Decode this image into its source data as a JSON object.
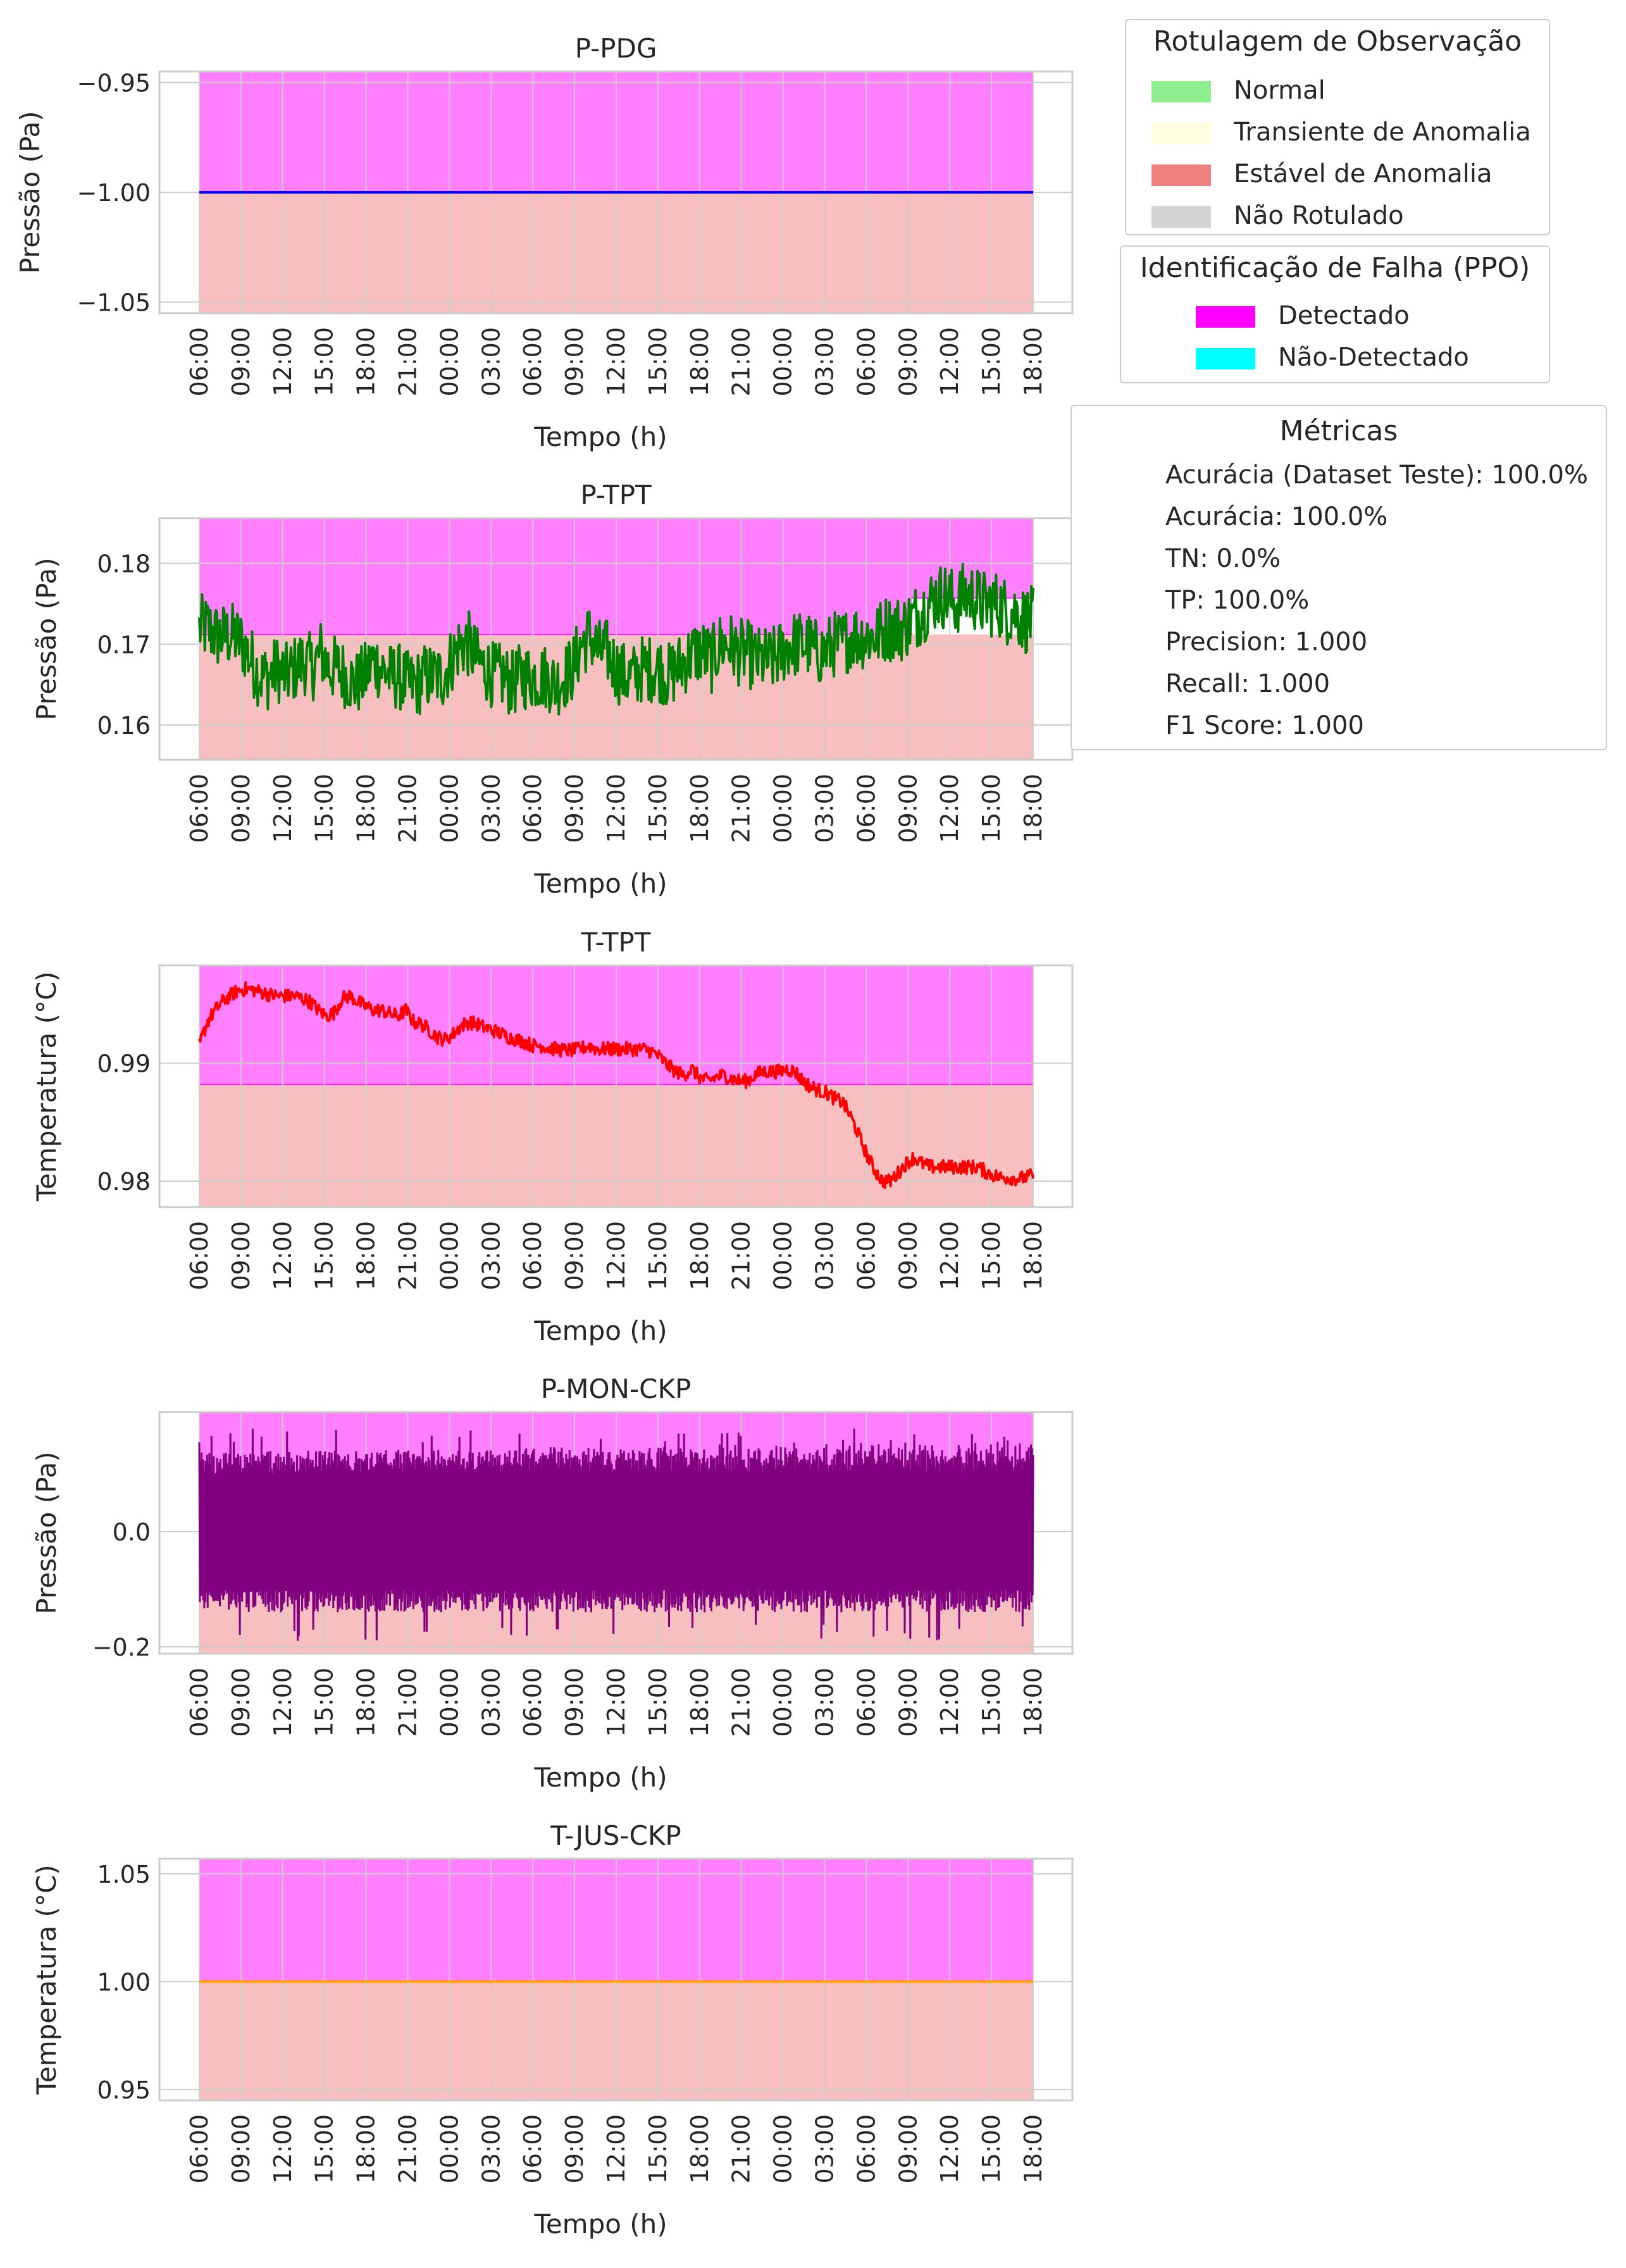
{
  "colors": {
    "grid": "#cccccc",
    "axes_edge": "#cccccc",
    "text": "#262626",
    "detected": "#ff00ff",
    "not_detected": "#00ffff",
    "normal": "#90ee90",
    "transient_anomaly": "#ffffe0",
    "stable_anomaly": "#f08080",
    "unlabeled": "#d3d3d3"
  },
  "time_ticks": [
    "06:00",
    "09:00",
    "12:00",
    "15:00",
    "18:00",
    "21:00",
    "00:00",
    "03:00",
    "06:00",
    "09:00",
    "12:00",
    "15:00",
    "18:00",
    "21:00",
    "00:00",
    "03:00",
    "06:00",
    "09:00",
    "12:00",
    "15:00",
    "18:00"
  ],
  "chart_data": [
    {
      "type": "line",
      "title": "P-PDG",
      "xlabel": "Tempo (h)",
      "ylabel": "Pressão (Pa)",
      "ylim": [
        -1.055,
        -0.945
      ],
      "yticks": [
        -0.95,
        -1.0,
        -1.05
      ],
      "ytick_labels": [
        "−0.95",
        "−1.00",
        "−1.05"
      ],
      "series": [
        {
          "color": "#0000ff",
          "values": [
            -1.0,
            -1.0
          ]
        }
      ],
      "shading": {
        "type": "steady",
        "boundary": -1.0,
        "upper": "Detectado",
        "lower": "Estável de Anomalia"
      },
      "grid": true
    },
    {
      "type": "line",
      "title": "P-TPT",
      "xlabel": "Tempo (h)",
      "ylabel": "Pressão (Pa)",
      "ylim": [
        0.1557,
        0.1856
      ],
      "yticks": [
        0.18,
        0.17,
        0.16
      ],
      "ytick_labels": [
        "0.18",
        "0.17",
        "0.16"
      ],
      "series": [
        {
          "color": "#008000",
          "noise": 0.0042,
          "values": [
            0.172,
            0.172,
            0.171,
            0.171,
            0.171,
            0.17,
            0.168,
            0.166,
            0.166,
            0.167,
            0.166,
            0.167,
            0.168,
            0.167,
            0.169,
            0.167,
            0.167,
            0.166,
            0.165,
            0.166,
            0.168,
            0.167,
            0.166,
            0.166,
            0.165,
            0.165,
            0.166,
            0.166,
            0.166,
            0.168,
            0.17,
            0.17,
            0.168,
            0.167,
            0.166,
            0.166,
            0.165,
            0.166,
            0.166,
            0.166,
            0.166,
            0.165,
            0.166,
            0.167,
            0.17,
            0.171,
            0.169,
            0.169,
            0.167,
            0.166,
            0.166,
            0.167,
            0.167,
            0.167,
            0.166,
            0.167,
            0.168,
            0.169,
            0.169,
            0.168,
            0.17,
            0.17,
            0.169,
            0.169,
            0.168,
            0.168,
            0.168,
            0.169,
            0.17,
            0.17,
            0.17,
            0.169,
            0.169,
            0.17,
            0.17,
            0.171,
            0.171,
            0.171,
            0.171,
            0.172,
            0.172,
            0.172,
            0.173,
            0.174,
            0.175,
            0.176,
            0.176,
            0.175,
            0.176,
            0.176,
            0.175,
            0.175,
            0.175,
            0.174,
            0.174,
            0.173,
            0.173
          ]
        }
      ],
      "shading": {
        "type": "upper-band",
        "boundary": 0.1712,
        "upper_segments": [
          [
            0,
            0.8547,
            0.1712
          ],
          [
            0.8547,
            1.0,
            0.1757
          ]
        ],
        "upper": "Detectado",
        "lower": "Estável de Anomalia"
      },
      "grid": true
    },
    {
      "type": "line",
      "title": "T-TPT",
      "xlabel": "Tempo (h)",
      "ylabel": "Temperatura (°C)",
      "ylim": [
        0.9778,
        0.9983
      ],
      "yticks": [
        0.99,
        0.98
      ],
      "ytick_labels": [
        "0.99",
        "0.98"
      ],
      "series": [
        {
          "color": "#ff0000",
          "noise": 0.0006,
          "values": [
            0.9915,
            0.9935,
            0.9945,
            0.9953,
            0.9958,
            0.9962,
            0.9963,
            0.9962,
            0.996,
            0.9958,
            0.9957,
            0.9957,
            0.9957,
            0.9955,
            0.9952,
            0.9945,
            0.994,
            0.9943,
            0.9955,
            0.9957,
            0.9952,
            0.9948,
            0.9945,
            0.9945,
            0.9942,
            0.994,
            0.9945,
            0.9935,
            0.9933,
            0.9928,
            0.9922,
            0.992,
            0.9925,
            0.9932,
            0.9935,
            0.9933,
            0.993,
            0.9928,
            0.9925,
            0.9922,
            0.992,
            0.9918,
            0.9915,
            0.9915,
            0.9913,
            0.9912,
            0.9911,
            0.9911,
            0.9912,
            0.9915,
            0.9912,
            0.9912,
            0.9912,
            0.9912,
            0.9912,
            0.9912,
            0.9912,
            0.991,
            0.9905,
            0.9898,
            0.9893,
            0.989,
            0.9895,
            0.9888,
            0.9885,
            0.9888,
            0.989,
            0.9887,
            0.9885,
            0.9885,
            0.989,
            0.9893,
            0.9893,
            0.9893,
            0.9895,
            0.9893,
            0.9885,
            0.988,
            0.9877,
            0.9875,
            0.987,
            0.9867,
            0.9855,
            0.984,
            0.9823,
            0.981,
            0.98,
            0.98,
            0.9807,
            0.9815,
            0.982,
            0.9815,
            0.9812,
            0.9812,
            0.9812,
            0.9812,
            0.9812,
            0.9812,
            0.9812,
            0.9808,
            0.9805,
            0.9803,
            0.9803,
            0.9802,
            0.9803,
            0.9805
          ]
        }
      ],
      "shading": {
        "type": "upper-band",
        "boundary": 0.9882,
        "upper": "Detectado",
        "lower": "Estável de Anomalia"
      },
      "grid": true
    },
    {
      "type": "line",
      "title": "P-MON-CKP",
      "xlabel": "Tempo (h)",
      "ylabel": "Pressão (Pa)",
      "ylim": [
        -0.212,
        0.208
      ],
      "yticks": [
        0.0,
        -0.2
      ],
      "ytick_labels": [
        "0.0",
        "−0.2"
      ],
      "series": [
        {
          "color": "#800080",
          "oscillation": {
            "low": -0.14,
            "high": 0.14,
            "extreme_low": -0.19,
            "extreme_high": 0.18
          },
          "values": [
            0.0,
            0.0
          ]
        }
      ],
      "shading": {
        "type": "upper-band",
        "boundary": -0.07,
        "upper": "Detectado",
        "lower": "Estável de Anomalia"
      },
      "grid": true
    },
    {
      "type": "line",
      "title": "T-JUS-CKP",
      "xlabel": "Tempo (h)",
      "ylabel": "Temperatura (°C)",
      "ylim": [
        0.945,
        1.057
      ],
      "yticks": [
        1.05,
        1.0,
        0.95
      ],
      "ytick_labels": [
        "1.05",
        "1.00",
        "0.95"
      ],
      "series": [
        {
          "color": "#ffa500",
          "values": [
            1.0,
            1.0
          ]
        }
      ],
      "shading": {
        "type": "steady",
        "boundary": 1.0,
        "upper": "Detectado",
        "lower": "Estável de Anomalia"
      },
      "grid": true
    }
  ],
  "legend_labels": {
    "title": "Rotulagem de Observação",
    "entries": [
      {
        "label": "Normal",
        "color": "#90ee90"
      },
      {
        "label": "Transiente de Anomalia",
        "color": "#ffffe0"
      },
      {
        "label": "Estável de Anomalia",
        "color": "#f08080"
      },
      {
        "label": "Não Rotulado",
        "color": "#d3d3d3"
      }
    ]
  },
  "legend_failure": {
    "title": "Identificação de Falha (PPO)",
    "entries": [
      {
        "label": "Detectado",
        "color": "#ff00ff"
      },
      {
        "label": "Não-Detectado",
        "color": "#00ffff"
      }
    ]
  },
  "legend_metrics": {
    "title": "Métricas",
    "entries": [
      "Acurácia (Dataset Teste): 100.0%",
      "Acurácia: 100.0%",
      "TN: 0.0%",
      "TP: 100.0%",
      "Precision: 1.000",
      "Recall: 1.000",
      "F1 Score: 1.000"
    ]
  }
}
